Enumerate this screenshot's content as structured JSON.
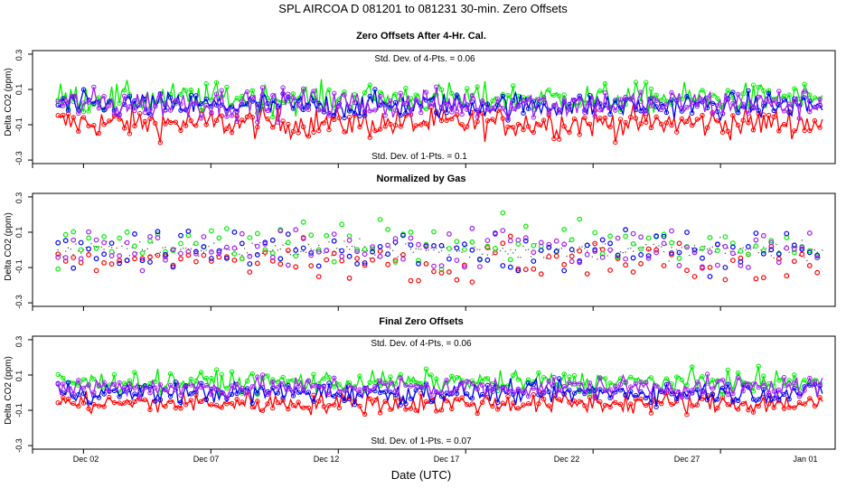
{
  "figure": {
    "title": "SPL    AIRCOA D    081201 to 081231    30-min. Zero Offsets",
    "xlabel": "Date (UTC)"
  },
  "colors": {
    "red": "#ff0000",
    "green": "#00ee00",
    "blue": "#0000ee",
    "purple": "#a020f0",
    "normalized": "#404040"
  },
  "chart_data": [
    {
      "type": "scatter",
      "title": "Zero Offsets After 4-Hr. Cal.",
      "ylabel": "Delta CO2 (ppm)",
      "ylim": [
        -0.32,
        0.32
      ],
      "yticks": [
        -0.3,
        -0.1,
        0.1,
        0.3
      ],
      "ytick_labels": [
        "-0.3",
        "-0.1",
        "0.1",
        "0.3"
      ],
      "xlim": [
        0.0,
        31.5
      ],
      "annotations": [
        "Std. Dev. of 4-Pts. = 0.06",
        "Std. Dev. of 1-Pts. = 0.1"
      ],
      "series": [
        {
          "name": "red",
          "mean": -0.09,
          "spread": 0.07
        },
        {
          "name": "green",
          "mean": 0.05,
          "spread": 0.07
        },
        {
          "name": "blue",
          "mean": 0.01,
          "spread": 0.06
        },
        {
          "name": "purple",
          "mean": 0.02,
          "spread": 0.07
        }
      ]
    },
    {
      "type": "scatter",
      "title": "Normalized by Gas",
      "ylabel": "Delta CO2 (ppm)",
      "ylim": [
        -0.32,
        0.32
      ],
      "yticks": [
        -0.3,
        -0.1,
        0.1,
        0.3
      ],
      "ytick_labels": [
        "-0.3",
        "-0.1",
        "0.1",
        "0.3"
      ],
      "xlim": [
        0.0,
        31.5
      ],
      "annotations": [],
      "series": [
        {
          "name": "normalized",
          "mean": 0.0,
          "spread": 0.04
        },
        {
          "name": "red",
          "mean": -0.05,
          "spread": 0.1
        },
        {
          "name": "green",
          "mean": 0.04,
          "spread": 0.1
        },
        {
          "name": "blue",
          "mean": 0.0,
          "spread": 0.1
        },
        {
          "name": "purple",
          "mean": 0.01,
          "spread": 0.1
        }
      ]
    },
    {
      "type": "scatter",
      "title": "Final Zero Offsets",
      "ylabel": "Delta CO2 (ppm)",
      "ylim": [
        -0.32,
        0.32
      ],
      "yticks": [
        -0.3,
        -0.1,
        0.1,
        0.3
      ],
      "ytick_labels": [
        "-0.3",
        "-0.1",
        "0.1",
        "0.3"
      ],
      "xlim": [
        0.0,
        31.5
      ],
      "annotations": [
        "Std. Dev. of 4-Pts. = 0.06",
        "Std. Dev. of 1-Pts. = 0.07"
      ],
      "series": [
        {
          "name": "red",
          "mean": -0.06,
          "spread": 0.05
        },
        {
          "name": "green",
          "mean": 0.06,
          "spread": 0.05
        },
        {
          "name": "blue",
          "mean": 0.0,
          "spread": 0.05
        },
        {
          "name": "purple",
          "mean": 0.03,
          "spread": 0.05
        }
      ]
    }
  ],
  "x_axis": {
    "day_start": 1.0,
    "day_end": 31.0,
    "tick_values": [
      2,
      7,
      12,
      17,
      22,
      27,
      32
    ],
    "tick_labels": [
      "Dec 02",
      "Dec 07",
      "Dec 12",
      "Dec 17",
      "Dec 22",
      "Dec 27",
      "Jan 01"
    ]
  }
}
